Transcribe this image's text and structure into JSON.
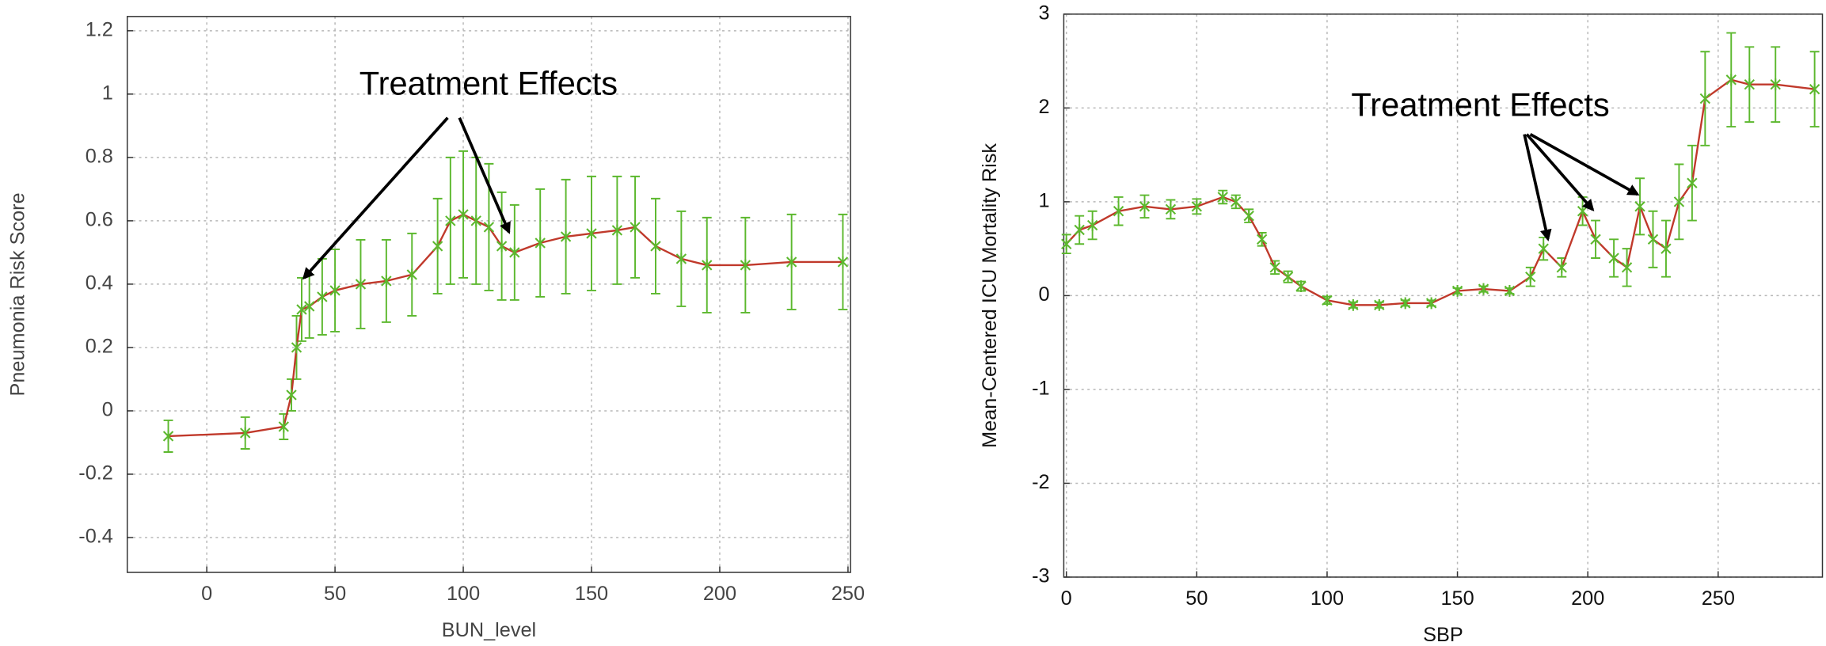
{
  "chart_data": [
    {
      "type": "line",
      "xlabel": "BUN_level",
      "ylabel": "Pneumonia Risk Score",
      "annotation": "Treatment Effects",
      "xlim": [
        -31,
        251
      ],
      "ylim": [
        -0.51,
        1.245
      ],
      "xticks": [
        0,
        50,
        100,
        150,
        200,
        250
      ],
      "yticks": [
        -0.4,
        -0.2,
        0,
        0.2,
        0.4,
        0.6,
        0.8,
        1,
        1.2
      ],
      "grid": true,
      "line_color": "#c0392b",
      "color": "#5cb82e",
      "x": [
        -15,
        15,
        30,
        33,
        35,
        37,
        40,
        45,
        50,
        60,
        70,
        80,
        90,
        95,
        100,
        105,
        110,
        115,
        120,
        130,
        140,
        150,
        160,
        167,
        175,
        185,
        195,
        210,
        228,
        248
      ],
      "values": [
        -0.08,
        -0.07,
        -0.05,
        0.05,
        0.2,
        0.32,
        0.33,
        0.36,
        0.38,
        0.4,
        0.41,
        0.43,
        0.52,
        0.6,
        0.62,
        0.6,
        0.58,
        0.52,
        0.5,
        0.53,
        0.55,
        0.56,
        0.57,
        0.58,
        0.52,
        0.48,
        0.46,
        0.46,
        0.47,
        0.47
      ],
      "errors": [
        0.05,
        0.05,
        0.04,
        0.05,
        0.1,
        0.1,
        0.1,
        0.12,
        0.13,
        0.14,
        0.13,
        0.13,
        0.15,
        0.2,
        0.2,
        0.2,
        0.2,
        0.17,
        0.15,
        0.17,
        0.18,
        0.18,
        0.17,
        0.16,
        0.15,
        0.15,
        0.15,
        0.15,
        0.15,
        0.15
      ]
    },
    {
      "type": "line",
      "xlabel": "SBP",
      "ylabel": "Mean-Centered ICU Mortality Risk",
      "annotation": "Treatment Effects",
      "xlim": [
        -1,
        290
      ],
      "ylim": [
        -3,
        3
      ],
      "xticks": [
        0,
        50,
        100,
        150,
        200,
        250
      ],
      "yticks": [
        -3,
        -2,
        -1,
        0,
        1,
        2,
        3
      ],
      "grid": true,
      "line_color": "#c0392b",
      "color": "#5cb82e",
      "x": [
        0,
        5,
        10,
        20,
        30,
        40,
        50,
        60,
        65,
        70,
        75,
        80,
        85,
        90,
        100,
        110,
        120,
        130,
        140,
        150,
        160,
        170,
        178,
        183,
        190,
        198,
        203,
        210,
        215,
        220,
        225,
        230,
        235,
        240,
        245,
        255,
        262,
        272,
        287
      ],
      "values": [
        0.55,
        0.7,
        0.75,
        0.9,
        0.95,
        0.92,
        0.95,
        1.05,
        1.0,
        0.85,
        0.6,
        0.3,
        0.2,
        0.1,
        -0.05,
        -0.1,
        -0.1,
        -0.08,
        -0.08,
        0.05,
        0.07,
        0.05,
        0.2,
        0.5,
        0.3,
        0.9,
        0.6,
        0.4,
        0.3,
        0.95,
        0.6,
        0.5,
        1.0,
        1.2,
        2.1,
        2.3,
        2.25,
        2.25,
        2.2
      ],
      "errors": [
        0.1,
        0.15,
        0.15,
        0.15,
        0.12,
        0.1,
        0.08,
        0.07,
        0.07,
        0.07,
        0.07,
        0.07,
        0.06,
        0.05,
        0.04,
        0.03,
        0.03,
        0.03,
        0.03,
        0.03,
        0.03,
        0.03,
        0.1,
        0.12,
        0.1,
        0.15,
        0.2,
        0.2,
        0.2,
        0.3,
        0.3,
        0.3,
        0.4,
        0.4,
        0.5,
        0.5,
        0.4,
        0.4,
        0.4
      ]
    }
  ]
}
